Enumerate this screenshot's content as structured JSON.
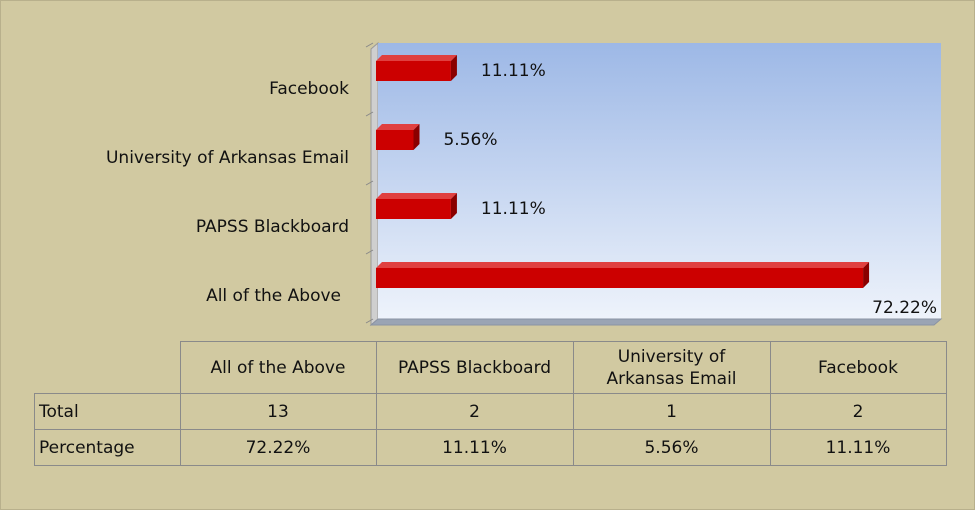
{
  "chart_data": {
    "type": "bar",
    "orientation": "horizontal",
    "categories": [
      "All of the Above",
      "PAPSS Blackboard",
      "University of Arkansas Email",
      "Facebook"
    ],
    "values": [
      72.22,
      11.11,
      5.56,
      11.11
    ],
    "value_labels": [
      "72.22%",
      "11.11%",
      "5.56%",
      "11.11%"
    ],
    "color": "#cc0000",
    "data_table": {
      "row_labels": [
        "Total",
        "Percentage"
      ],
      "total": [
        13,
        2,
        1,
        2
      ]
    }
  }
}
